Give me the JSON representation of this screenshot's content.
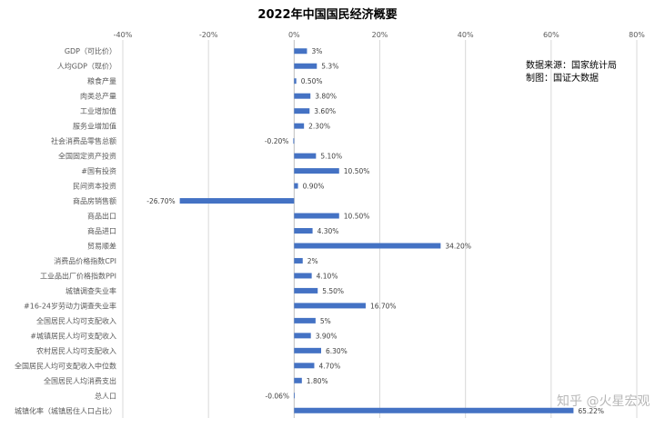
{
  "chart_data": {
    "type": "bar",
    "orientation": "horizontal",
    "title": "2022年中国国民经济概要",
    "x_ticks": [
      "-40%",
      "-20%",
      "0%",
      "20%",
      "40%",
      "60%",
      "80%"
    ],
    "xlim": [
      -40,
      80
    ],
    "grid": true,
    "bar_color": "#4472c4",
    "categories": [
      "GDP（可比价）",
      "人均GDP（现价）",
      "粮食产量",
      "肉类总产量",
      "工业增加值",
      "服务业增加值",
      "社会消费品零售总额",
      "全国固定资产投资",
      "#国有投资",
      "民间资本投资",
      "商品房销售额",
      "商品出口",
      "商品进口",
      "贸易顺差",
      "消费品价格指数CPI",
      "工业品出厂价格指数PPI",
      "城镇调查失业率",
      "#16-24岁劳动力调查失业率",
      "全国居民人均可支配收入",
      "#城镇居民人均可支配收入",
      "农村居民人均可支配收入",
      "全国居民人均可支配收入中位数",
      "全国居民人均消费支出",
      "总人口",
      "城镇化率（城镇居住人口占比）"
    ],
    "values": [
      3,
      5.3,
      0.5,
      3.8,
      3.6,
      2.3,
      -0.2,
      5.1,
      10.5,
      0.9,
      -26.7,
      10.5,
      4.3,
      34.2,
      2,
      4.1,
      5.5,
      16.7,
      5,
      3.9,
      6.3,
      4.7,
      1.8,
      -0.06,
      65.22
    ],
    "labels": [
      "3%",
      "5.3%",
      "0.50%",
      "3.80%",
      "3.60%",
      "2.30%",
      "-0.20%",
      "5.10%",
      "10.50%",
      "0.90%",
      "-26.70%",
      "10.50%",
      "4.30%",
      "34.20%",
      "2%",
      "4.10%",
      "5.50%",
      "16.70%",
      "5%",
      "3.90%",
      "6.30%",
      "4.70%",
      "1.80%",
      "-0.06%",
      "65.22%"
    ]
  },
  "source_note": {
    "line1": "数据来源：国家统计局",
    "line2": "制图：国证大数据"
  },
  "watermark": "知乎 @火星宏观"
}
